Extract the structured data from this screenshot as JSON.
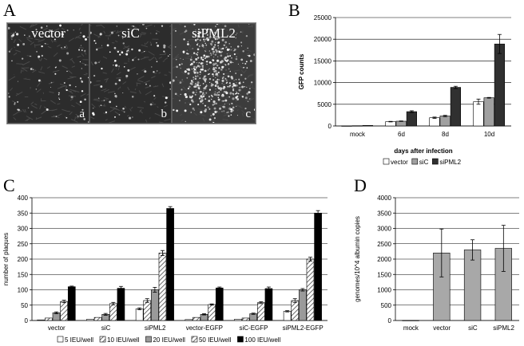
{
  "panel_letters": {
    "A": "A",
    "B": "B",
    "C": "C",
    "D": "D"
  },
  "micrographs": [
    {
      "label": "vector",
      "sub": "a"
    },
    {
      "label": "siC",
      "sub": "b"
    },
    {
      "label": "siPML2",
      "sub": "c"
    }
  ],
  "chart_data": [
    {
      "panel": "B",
      "type": "bar",
      "categories": [
        "mock",
        "6d",
        "8d",
        "10d"
      ],
      "series": [
        {
          "name": "vector",
          "color": "#ffffff",
          "values": [
            30,
            1000,
            1900,
            5600
          ],
          "errors": [
            0,
            60,
            150,
            600
          ]
        },
        {
          "name": "siC",
          "color": "#a0a0a0",
          "values": [
            60,
            1100,
            2300,
            6500
          ],
          "errors": [
            0,
            60,
            150,
            80
          ]
        },
        {
          "name": "siPML2",
          "color": "#303030",
          "values": [
            120,
            3300,
            8900,
            18900
          ],
          "errors": [
            0,
            200,
            250,
            2200
          ]
        }
      ],
      "ylabel": "GFP counts",
      "xlabel": "days after infection",
      "ylim": [
        0,
        25000
      ],
      "yticks": [
        "0",
        "5000",
        "10000",
        "15000",
        "20000",
        "25000"
      ],
      "legend_position": "bottom"
    },
    {
      "panel": "C",
      "type": "bar",
      "categories": [
        "vector",
        "siC",
        "siPML2",
        "vector-EGFP",
        "siC-EGFP",
        "siPML2-EGFP"
      ],
      "series": [
        {
          "name": "5 IEU/well",
          "color": "#ffffff",
          "values": [
            2,
            4,
            38,
            3,
            4,
            30
          ],
          "errors": [
            0,
            0,
            3,
            0,
            0,
            2
          ]
        },
        {
          "name": "10 IEU/well",
          "color": "#d8d8d8",
          "hatch": true,
          "values": [
            8,
            10,
            65,
            10,
            8,
            65
          ],
          "errors": [
            0,
            0,
            6,
            0,
            0,
            6
          ]
        },
        {
          "name": "20 IEU/well",
          "color": "#9a9a9a",
          "values": [
            25,
            20,
            100,
            20,
            22,
            100
          ],
          "errors": [
            3,
            3,
            8,
            2,
            2,
            4
          ]
        },
        {
          "name": "50 IEU/well",
          "color": "#e4e4e4",
          "hatch": true,
          "values": [
            62,
            55,
            220,
            52,
            58,
            200
          ],
          "errors": [
            4,
            4,
            8,
            2,
            3,
            6
          ]
        },
        {
          "name": "100 IEU/well",
          "color": "#000000",
          "values": [
            110,
            105,
            365,
            106,
            104,
            350
          ],
          "errors": [
            2,
            6,
            6,
            3,
            5,
            8
          ]
        }
      ],
      "ylabel": "number of plaques",
      "ylim": [
        0,
        400
      ],
      "yticks": [
        "0",
        "50",
        "100",
        "150",
        "200",
        "250",
        "300",
        "350",
        "400"
      ],
      "legend_position": "bottom"
    },
    {
      "panel": "D",
      "type": "bar",
      "categories": [
        "mock",
        "vector",
        "siC",
        "siPML2"
      ],
      "series": [
        {
          "color": "#a8a8a8",
          "values": [
            5,
            2200,
            2300,
            2350
          ],
          "errors": [
            0,
            780,
            330,
            750
          ]
        }
      ],
      "ylabel": "genomes/10^4 albumin copies",
      "ylim": [
        0,
        4000
      ],
      "yticks": [
        "0",
        "500",
        "1000",
        "1500",
        "2000",
        "2500",
        "3000",
        "3500",
        "4000"
      ]
    }
  ]
}
